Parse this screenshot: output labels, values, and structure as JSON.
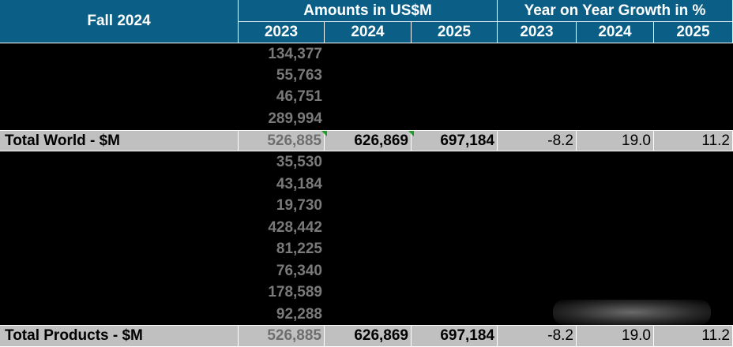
{
  "header": {
    "title": "Fall 2024",
    "group_amounts": "Amounts in US$M",
    "group_growth": "Year on Year Growth in %",
    "amount_years": [
      "2023",
      "2024",
      "2025"
    ],
    "growth_years": [
      "2023",
      "2024",
      "2025"
    ]
  },
  "world_block": {
    "values_2023": [
      "134,377",
      "55,763",
      "46,751",
      "289,994"
    ]
  },
  "total_world": {
    "label": "Total World - $M",
    "v2023": "526,885",
    "v2024": "626,869",
    "v2025": "697,184",
    "g2023": "-8.2",
    "g2024": "19.0",
    "g2025": "11.2"
  },
  "products_block": {
    "values_2023": [
      "35,530",
      "43,184",
      "19,730",
      "428,442",
      "81,225",
      "76,340",
      "178,589",
      "92,288"
    ]
  },
  "total_products": {
    "label": "Total Products - $M",
    "v2023": "526,885",
    "v2024": "626,869",
    "v2025": "697,184",
    "g2023": "-8.2",
    "g2024": "19.0",
    "g2025": "11.2"
  },
  "colors": {
    "header_bg": "#0b5f86",
    "total_bg": "#c0c0c0",
    "muted_text": "#7a7a7a",
    "comment_marker": "#1f9d2b"
  }
}
